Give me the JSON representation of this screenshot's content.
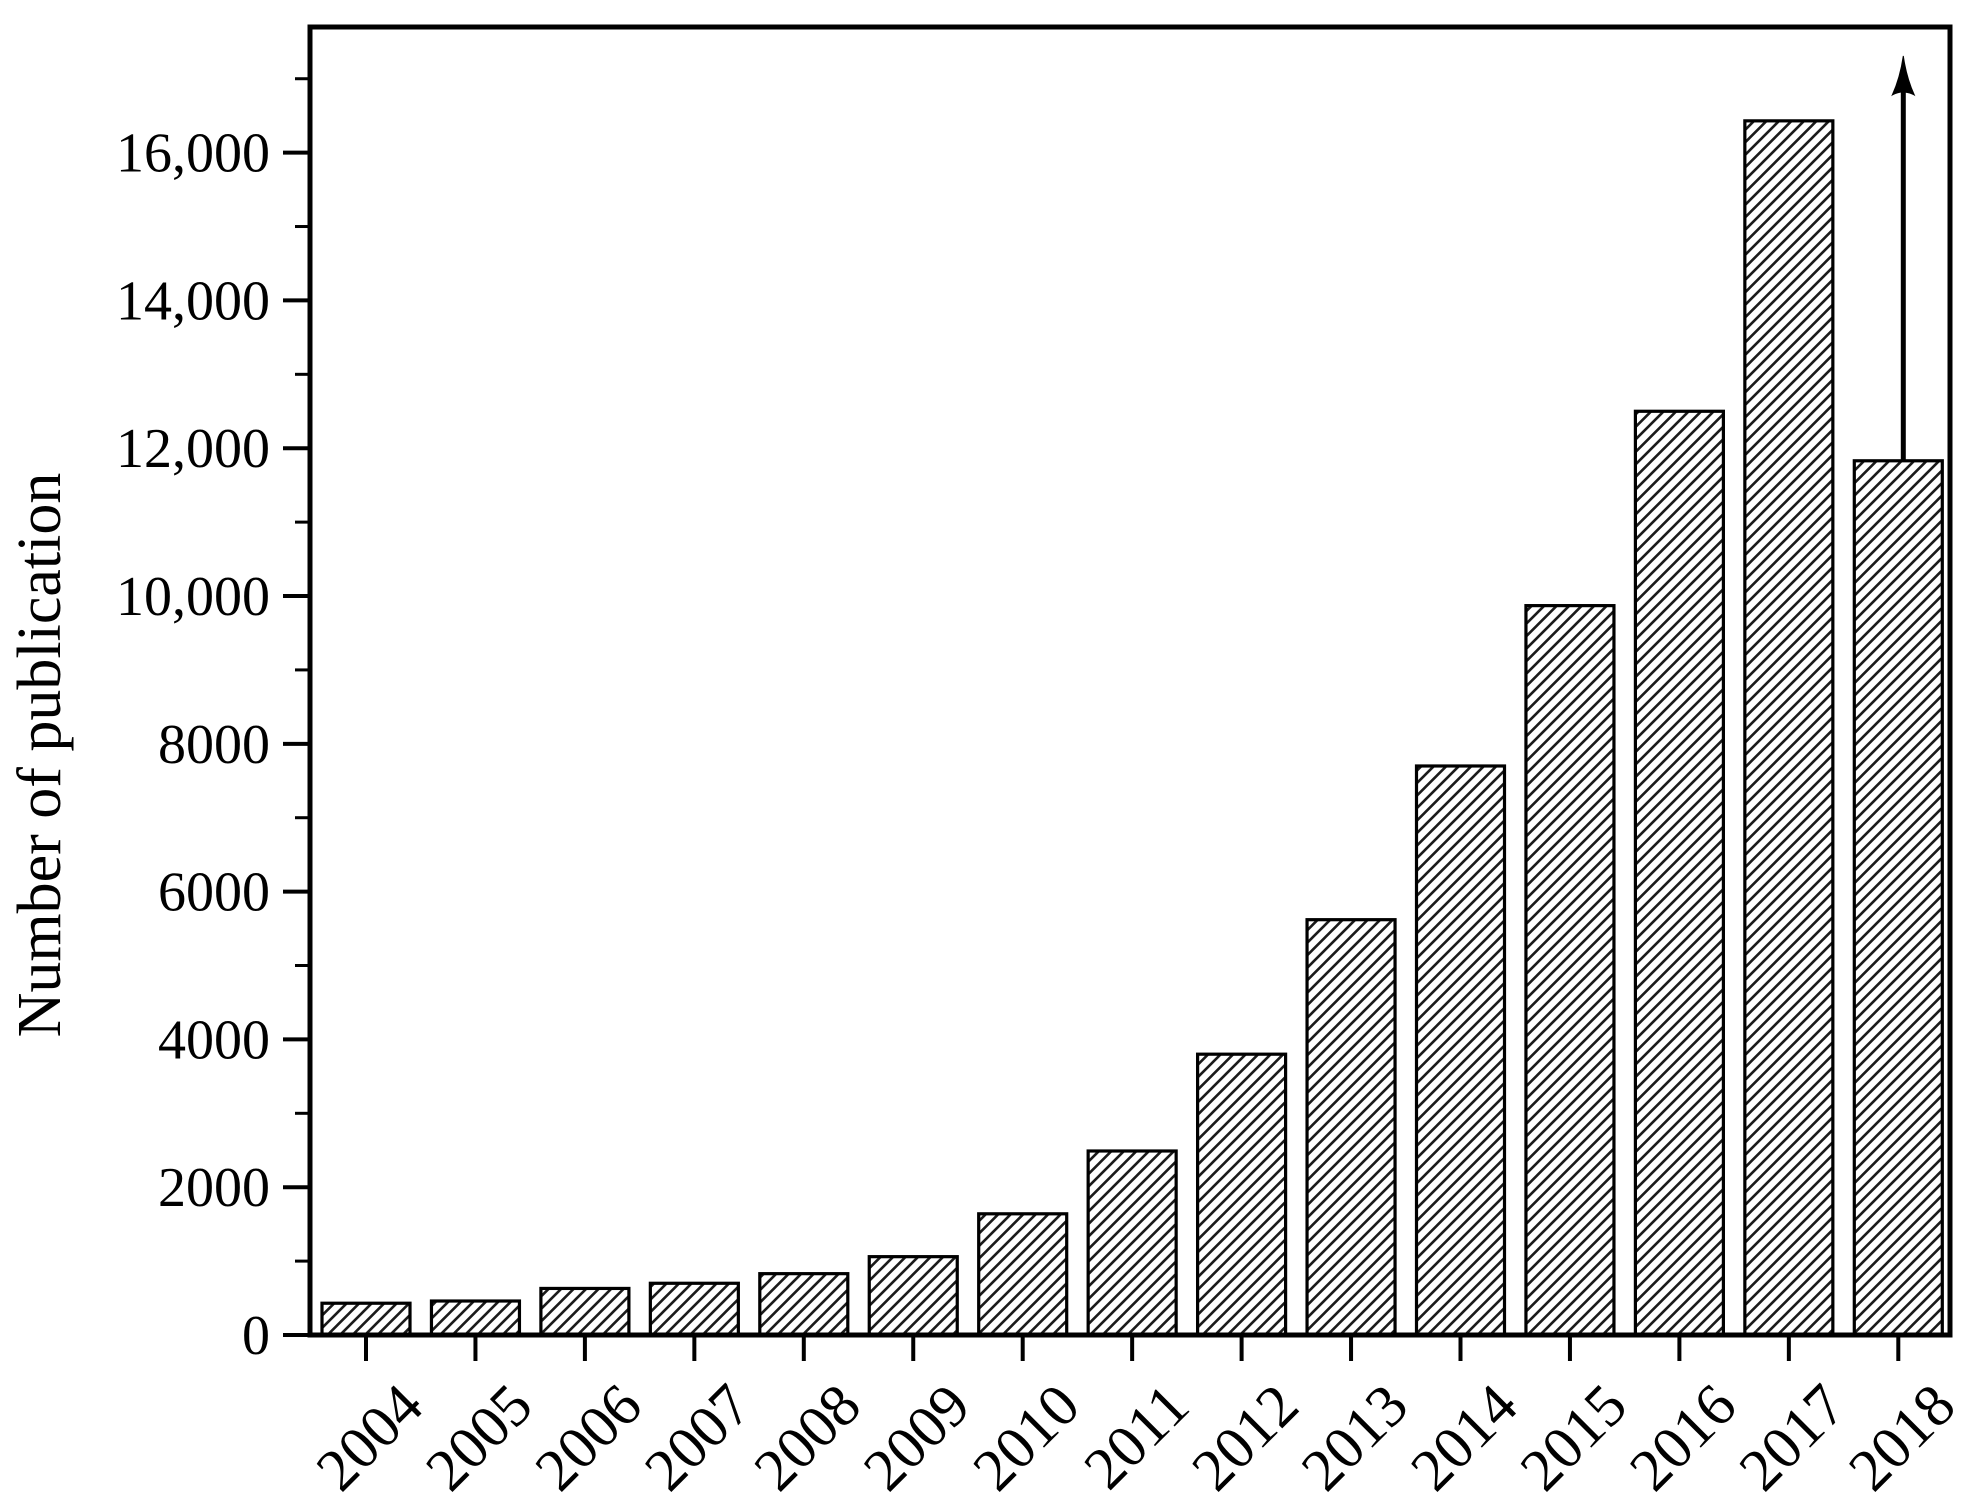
{
  "figure": {
    "background": "#ffffff",
    "axis_color": "#000000",
    "text_color": "#000000"
  },
  "chart_data": {
    "type": "bar",
    "title": "",
    "xlabel": "",
    "ylabel": "Number of publication",
    "categories": [
      "2004",
      "2005",
      "2006",
      "2007",
      "2008",
      "2009",
      "2010",
      "2011",
      "2012",
      "2013",
      "2014",
      "2015",
      "2016",
      "2017",
      "2018"
    ],
    "values": [
      430,
      460,
      630,
      700,
      830,
      1060,
      1640,
      2490,
      3800,
      5620,
      7700,
      9870,
      12500,
      16430,
      11830
    ],
    "ylim": [
      0,
      17700
    ],
    "ytick_major": [
      0,
      2000,
      4000,
      6000,
      8000,
      10000,
      12000,
      14000,
      16000
    ],
    "ytick_labels": [
      "0",
      "2000",
      "4000",
      "6000",
      "8000",
      "10,000",
      "12,000",
      "14,000",
      "16,000"
    ],
    "ytick_minor_step": 1000,
    "grid": false,
    "legend": false,
    "bar_style": {
      "fill": "#ffffff",
      "hatch": "diagonal-forward",
      "hatch_color": "#1b1b1b",
      "stroke": "#000000"
    },
    "annotations": [
      {
        "type": "arrow-up",
        "category": "2018"
      }
    ]
  }
}
